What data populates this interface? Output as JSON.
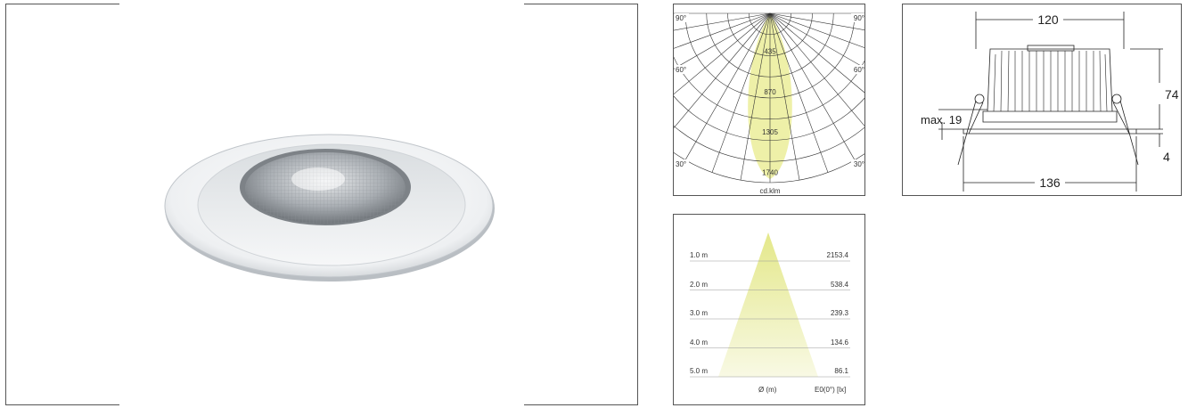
{
  "polar": {
    "angles": {
      "left_90": "90°",
      "right_90": "90°",
      "left_60": "60°",
      "right_60": "60°",
      "left_30": "30°",
      "right_30": "30°"
    },
    "values": [
      "435",
      "870",
      "1305",
      "1740"
    ],
    "unit": "cd.klm"
  },
  "beam": {
    "rows": [
      {
        "distance": "1.0 m",
        "lux": "2153.4"
      },
      {
        "distance": "2.0 m",
        "lux": "538.4"
      },
      {
        "distance": "3.0 m",
        "lux": "239.3"
      },
      {
        "distance": "4.0 m",
        "lux": "134.6"
      },
      {
        "distance": "5.0 m",
        "lux": "86.1"
      }
    ],
    "footer_diameter": "Ø (m)",
    "footer_illuminance": "E0(0°) [lx]"
  },
  "dimensions": {
    "width_top": "120",
    "height": "74",
    "max_label": "max. 19",
    "bottom_offset": "4",
    "width_bottom": "136"
  },
  "colors": {
    "beam_fill": "#eef0a8",
    "frame": "#555555"
  }
}
